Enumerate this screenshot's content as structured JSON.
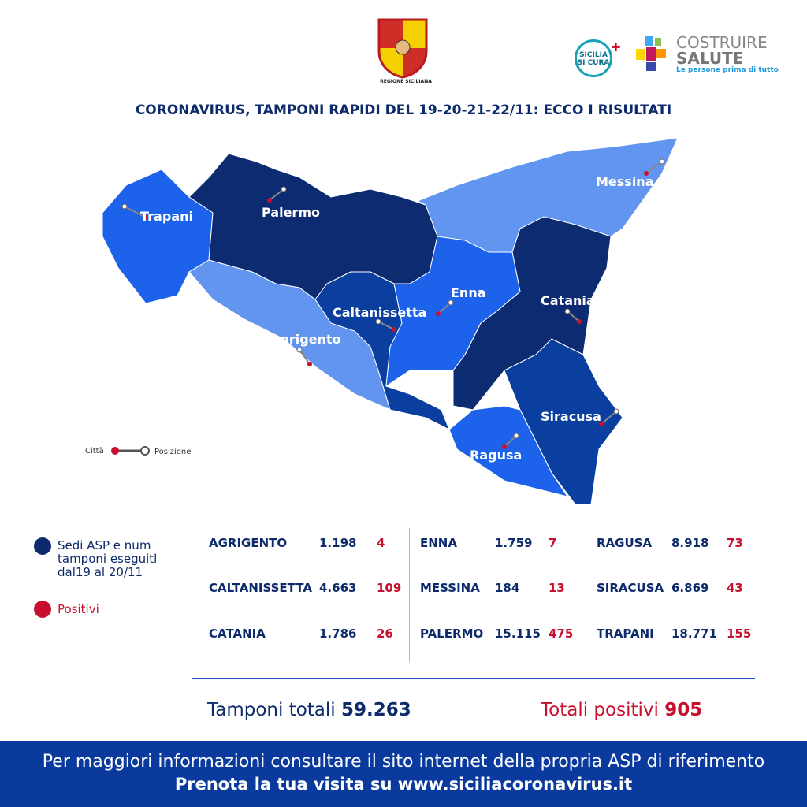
{
  "header": {
    "title": "CORONAVIRUS, TAMPONI RAPIDI DEL 19-20-21-22/11: ECCO I RISULTATI",
    "crest_label": "REGIONE SICILIANA",
    "logo_sicilia": "SICILIA SI CURA",
    "logo_costruire_1": "COSTRUIRE",
    "logo_costruire_2": "SALUTE",
    "logo_costruire_tag": "Le persone prima di tutto"
  },
  "map": {
    "provinces": [
      "Trapani",
      "Palermo",
      "Messina",
      "Enna",
      "Catania",
      "Caltanissetta",
      "Agrigento",
      "Siracusa",
      "Ragusa"
    ],
    "colors": {
      "dark": "#0c2b70",
      "medium": "#0a3f9f",
      "bright": "#1c62ea",
      "light": "#6195f0",
      "positive": "#c8102e"
    },
    "key": {
      "city": "Città",
      "position": "Posizione"
    }
  },
  "legend": {
    "asp": "Sedi ASP e num tamponi eseguitl dal19 al 20/11",
    "positive": "Positivi"
  },
  "table": [
    {
      "name": "AGRIGENTO",
      "tests": "1.198",
      "positive": "4"
    },
    {
      "name": "CALTANISSETTA",
      "tests": "4.663",
      "positive": "109"
    },
    {
      "name": "CATANIA",
      "tests": "1.786",
      "positive": "26"
    },
    {
      "name": "ENNA",
      "tests": "1.759",
      "positive": "7"
    },
    {
      "name": "MESSINA",
      "tests": "184",
      "positive": "13"
    },
    {
      "name": "PALERMO",
      "tests": "15.115",
      "positive": "475"
    },
    {
      "name": "RAGUSA",
      "tests": "8.918",
      "positive": "73"
    },
    {
      "name": "SIRACUSA",
      "tests": "6.869",
      "positive": "43"
    },
    {
      "name": "TRAPANI",
      "tests": "18.771",
      "positive": "155"
    }
  ],
  "totals": {
    "tests_label": "Tamponi totali",
    "tests": "59.263",
    "positive_label": "Totali positivi",
    "positive": "905"
  },
  "footer": {
    "line1": "Per maggiori informazioni consultare il sito internet della propria ASP di riferimento",
    "line2": "Prenota la tua visita su www.siciliacoronavirus.it"
  }
}
